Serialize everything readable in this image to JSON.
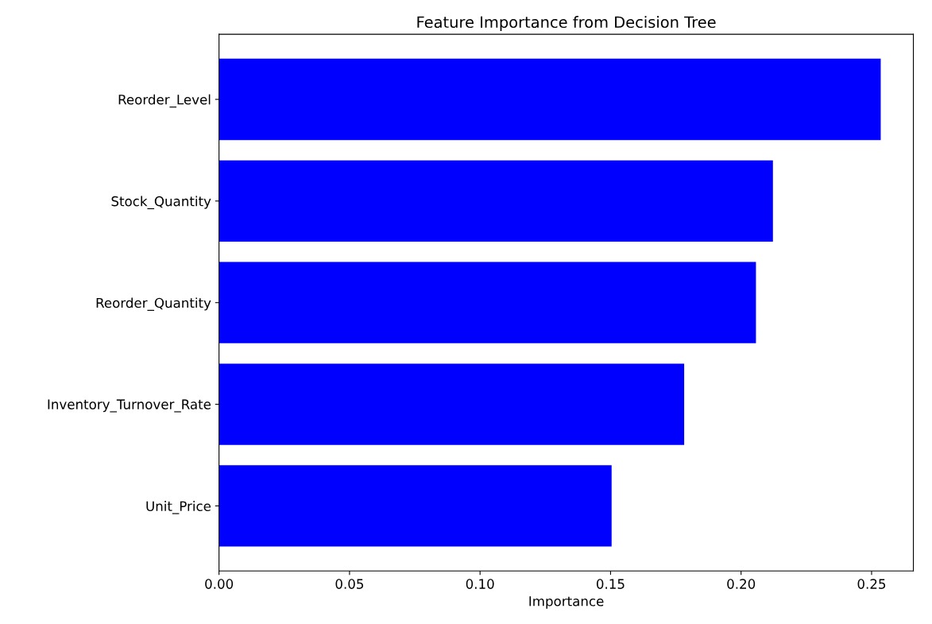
{
  "chart_data": {
    "type": "bar",
    "orientation": "horizontal",
    "title": "Feature Importance from Decision Tree",
    "xlabel": "Importance",
    "categories": [
      "Reorder_Level",
      "Stock_Quantity",
      "Reorder_Quantity",
      "Inventory_Turnover_Rate",
      "Unit_Price"
    ],
    "values": [
      0.2535,
      0.2122,
      0.2057,
      0.1782,
      0.1504
    ],
    "color": "#0000ff",
    "xlim": [
      0,
      0.266
    ],
    "xticks": [
      {
        "value": 0,
        "label": "0.00"
      },
      {
        "value": 0.05,
        "label": "0.05"
      },
      {
        "value": 0.1,
        "label": "0.10"
      },
      {
        "value": 0.15,
        "label": "0.15"
      },
      {
        "value": 0.2,
        "label": "0.20"
      },
      {
        "value": 0.25,
        "label": "0.25"
      }
    ],
    "grid": false
  }
}
